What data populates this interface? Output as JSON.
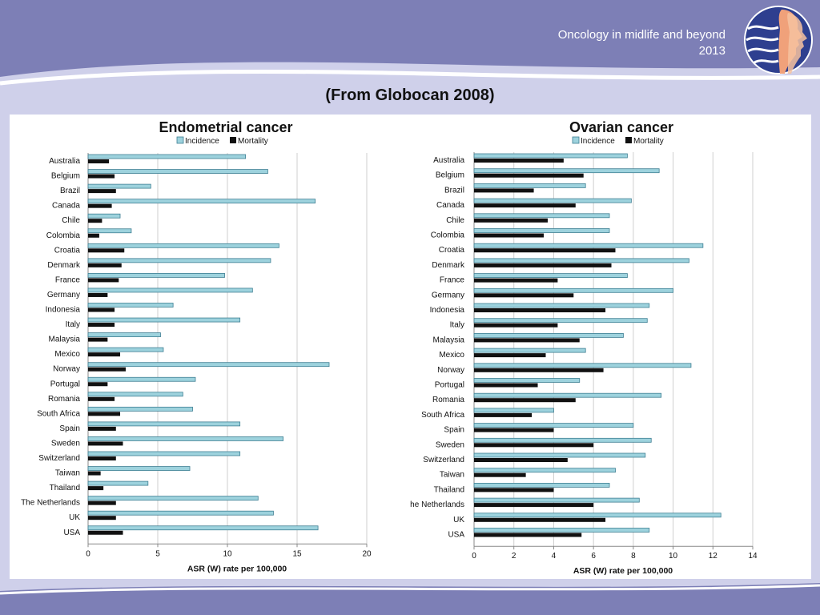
{
  "header": {
    "brand_line1": "Oncology in midlife and beyond",
    "brand_line2": "2013",
    "subtitle": "(From Globocan 2008)"
  },
  "colors": {
    "incidence": "#9dd2dd",
    "incidence_stroke": "#3f7f93",
    "mortality": "#111111",
    "background": "#7d7fb6",
    "band": "#cfd0ea"
  },
  "chart_data": [
    {
      "type": "bar",
      "orientation": "horizontal",
      "title": "Endometrial cancer",
      "xlabel": "ASR (W) rate per 100,000",
      "ylabel": "",
      "xlim": [
        0,
        20
      ],
      "xticks": [
        0,
        5,
        10,
        15,
        20
      ],
      "grid": true,
      "legend": "top",
      "categories": [
        "Australia",
        "Belgium",
        "Brazil",
        "Canada",
        "Chile",
        "Colombia",
        "Croatia",
        "Denmark",
        "France",
        "Germany",
        "Indonesia",
        "Italy",
        "Malaysia",
        "Mexico",
        "Norway",
        "Portugal",
        "Romania",
        "South Africa",
        "Spain",
        "Sweden",
        "Switzerland",
        "Taiwan",
        "Thailand",
        "The Netherlands",
        "UK",
        "USA"
      ],
      "series": [
        {
          "name": "Incidence",
          "values": [
            11.3,
            12.9,
            4.5,
            16.3,
            2.3,
            3.1,
            13.7,
            13.1,
            9.8,
            11.8,
            6.1,
            10.9,
            5.2,
            5.4,
            17.3,
            7.7,
            6.8,
            7.5,
            10.9,
            14.0,
            10.9,
            7.3,
            4.3,
            12.2,
            13.3,
            16.5
          ]
        },
        {
          "name": "Mortality",
          "values": [
            1.5,
            1.9,
            2.0,
            1.7,
            1.0,
            0.8,
            2.6,
            2.4,
            2.2,
            1.4,
            1.9,
            1.9,
            1.4,
            2.3,
            2.7,
            1.4,
            1.9,
            2.3,
            2.0,
            2.5,
            2.0,
            0.9,
            1.1,
            2.0,
            2.0,
            2.5
          ]
        }
      ]
    },
    {
      "type": "bar",
      "orientation": "horizontal",
      "title": "Ovarian cancer",
      "xlabel": "ASR (W) rate per 100,000",
      "ylabel": "",
      "xlim": [
        0,
        14
      ],
      "xticks": [
        0,
        2,
        4,
        6,
        8,
        10,
        12,
        14
      ],
      "grid": true,
      "legend": "top",
      "categories": [
        "Australia",
        "Belgium",
        "Brazil",
        "Canada",
        "Chile",
        "Colombia",
        "Croatia",
        "Denmark",
        "France",
        "Germany",
        "Indonesia",
        "Italy",
        "Malaysia",
        "Mexico",
        "Norway",
        "Portugal",
        "Romania",
        "South Africa",
        "Spain",
        "Sweden",
        "Switzerland",
        "Taiwan",
        "Thailand",
        "The Netherlands",
        "UK",
        "USA"
      ],
      "series": [
        {
          "name": "Incidence",
          "values": [
            7.7,
            9.3,
            5.6,
            7.9,
            6.8,
            6.8,
            11.5,
            10.8,
            7.7,
            10.0,
            8.8,
            8.7,
            7.5,
            5.6,
            10.9,
            5.3,
            9.4,
            4.0,
            8.0,
            8.9,
            8.6,
            7.1,
            6.8,
            8.3,
            12.4,
            8.8
          ]
        },
        {
          "name": "Mortality",
          "values": [
            4.5,
            5.5,
            3.0,
            5.1,
            3.7,
            3.5,
            7.1,
            6.9,
            4.2,
            5.0,
            6.6,
            4.2,
            5.3,
            3.6,
            6.5,
            3.2,
            5.1,
            2.9,
            4.0,
            6.0,
            4.7,
            2.6,
            4.0,
            6.0,
            6.6,
            5.4
          ]
        }
      ]
    }
  ]
}
